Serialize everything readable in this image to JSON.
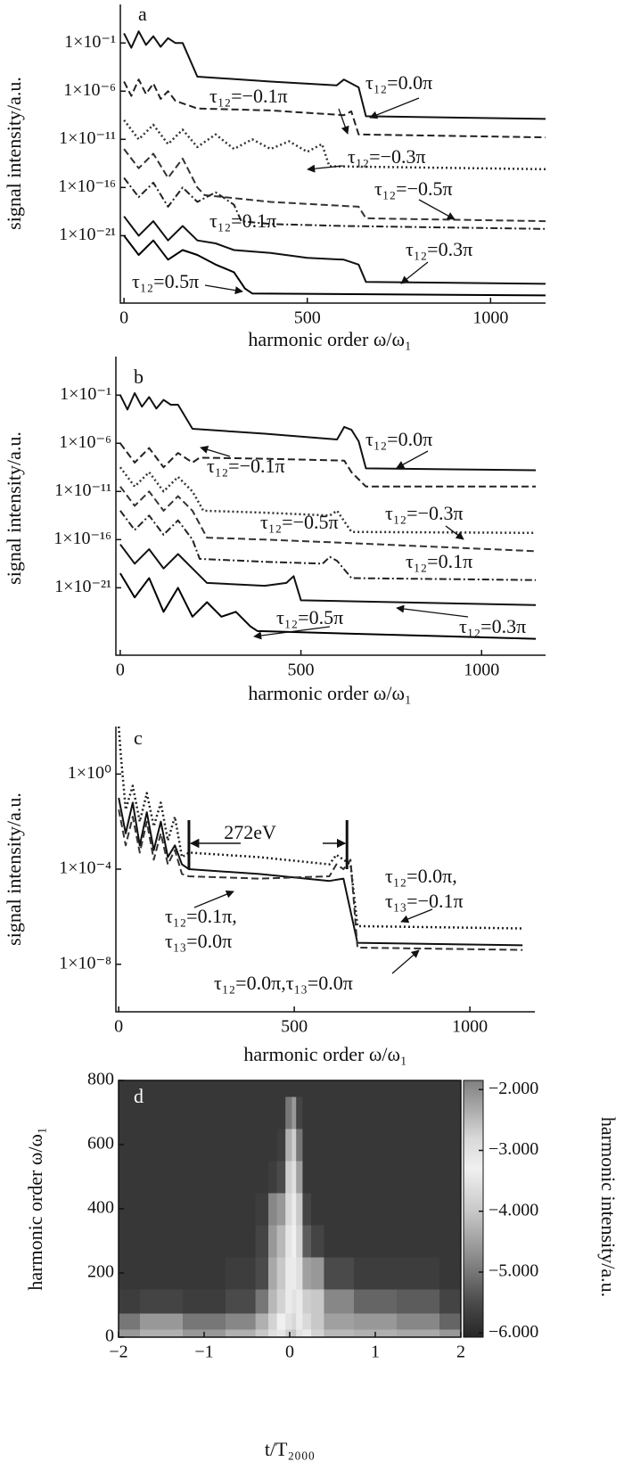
{
  "chart_data": [
    {
      "type": "line",
      "label": "a",
      "xlabel": "harmonic order ω/ω₁",
      "ylabel": "signal intensity/a.u.",
      "log_y": true,
      "xlim": [
        -10,
        1150
      ],
      "ylim": [
        1e-28,
        1000
      ],
      "xticks": [
        0,
        500,
        1000
      ],
      "yticks": [
        {
          "value": 0.1,
          "label": "1×10⁻¹"
        },
        {
          "value": 1e-06,
          "label": "1×10⁻⁶"
        },
        {
          "value": 1e-11,
          "label": "1×10⁻¹¹"
        },
        {
          "value": 1e-16,
          "label": "1×10⁻¹⁶"
        },
        {
          "value": 1e-21,
          "label": "1×10⁻²¹"
        }
      ],
      "series": [
        {
          "name": "τ₁₂=0.0π",
          "color": "#111111",
          "dash": "solid",
          "x": [
            0,
            20,
            40,
            60,
            80,
            100,
            120,
            140,
            160,
            200,
            400,
            580,
            600,
            620,
            640,
            660,
            1150
          ],
          "values": [
            1,
            0.032,
            1.6,
            0.063,
            0.5,
            0.04,
            0.32,
            0.1,
            0.1,
            3.2e-05,
            1e-05,
            4e-06,
            1.6e-05,
            6.3e-06,
            2.5e-06,
            2.5e-09,
            1.3e-09
          ]
        },
        {
          "name": "τ₁₂=−0.1π",
          "color": "#222222",
          "dash": "dashed",
          "x": [
            0,
            20,
            40,
            60,
            80,
            100,
            120,
            140,
            200,
            400,
            600,
            620,
            640,
            1150
          ],
          "values": [
            1e-05,
            3.2e-07,
            1.6e-05,
            5e-07,
            6.3e-06,
            1.6e-07,
            1e-06,
            1e-07,
            1.6e-08,
            1e-08,
            3.2e-09,
            8e-09,
            3.2e-11,
            1.6e-11
          ]
        },
        {
          "name": "τ₁₂=−0.3π",
          "color": "#333333",
          "dash": "dotted",
          "x": [
            0,
            40,
            80,
            120,
            160,
            200,
            250,
            300,
            350,
            400,
            450,
            500,
            540,
            560,
            1150
          ],
          "values": [
            1e-09,
            1e-11,
            3.2e-10,
            3.2e-12,
            1e-10,
            1.6e-12,
            3.2e-11,
            1e-12,
            1e-11,
            1e-12,
            6.3e-12,
            5e-13,
            3.2e-12,
            1.6e-14,
            8e-15
          ]
        },
        {
          "name": "τ₁₂=−0.5π",
          "color": "#333333",
          "dash": "dashed",
          "x": [
            0,
            40,
            80,
            120,
            160,
            200,
            220,
            400,
            640,
            660,
            1150
          ],
          "values": [
            1e-12,
            1e-14,
            3.2e-13,
            1e-15,
            1e-13,
            1e-16,
            1.6e-17,
            3.2e-18,
            1e-18,
            6.3e-20,
            3.2e-20
          ]
        },
        {
          "name": "τ₁₂=0.1π",
          "color": "#222222",
          "dash": "dashdot",
          "x": [
            0,
            40,
            80,
            120,
            160,
            200,
            250,
            300,
            320,
            400,
            600,
            1150
          ],
          "values": [
            1e-15,
            1e-17,
            3.2e-16,
            1e-18,
            1e-16,
            3.2e-18,
            3.2e-17,
            1.6e-18,
            3.2e-20,
            1.6e-20,
            1e-20,
            5e-21
          ]
        },
        {
          "name": "τ₁₂=0.3π",
          "color": "#111111",
          "dash": "solid",
          "x": [
            0,
            40,
            80,
            120,
            160,
            200,
            250,
            300,
            400,
            500,
            600,
            640,
            660,
            1150
          ],
          "values": [
            1e-19,
            1e-21,
            3.2e-20,
            3.2e-22,
            1e-20,
            3.2e-22,
            1.6e-22,
            3.2e-23,
            1.6e-23,
            5e-24,
            3.2e-24,
            1e-24,
            1.6e-26,
            1e-26
          ]
        },
        {
          "name": "τ₁₂=0.5π",
          "color": "#000000",
          "dash": "solid",
          "x": [
            0,
            40,
            80,
            120,
            160,
            200,
            250,
            300,
            330,
            350,
            1150
          ],
          "values": [
            1e-21,
            1e-23,
            3.2e-22,
            3.2e-24,
            3.2e-23,
            1e-23,
            1e-24,
            1.6e-25,
            3.2e-27,
            1e-27,
            6.3e-28
          ]
        }
      ]
    },
    {
      "type": "line",
      "label": "b",
      "xlabel": "harmonic order ω/ω₁",
      "ylabel": "signal intensity/a.u.",
      "log_y": true,
      "xlim": [
        -12,
        1177
      ],
      "ylim": [
        1e-28,
        1000
      ],
      "xticks": [
        0,
        500,
        1000
      ],
      "yticks": [
        {
          "value": 0.1,
          "label": "1×10⁻¹"
        },
        {
          "value": 1e-06,
          "label": "1×10⁻⁶"
        },
        {
          "value": 1e-11,
          "label": "1×10⁻¹¹"
        },
        {
          "value": 1e-16,
          "label": "1×10⁻¹⁶"
        },
        {
          "value": 1e-21,
          "label": "1×10⁻²¹"
        }
      ],
      "series": [
        {
          "name": "τ₁₂=0.0π",
          "color": "#111111",
          "dash": "solid",
          "x": [
            0,
            20,
            40,
            60,
            80,
            100,
            120,
            140,
            160,
            200,
            400,
            600,
            620,
            640,
            660,
            680,
            1150
          ],
          "values": [
            0.1,
            0.0032,
            0.16,
            0.0063,
            0.063,
            0.004,
            0.032,
            0.01,
            0.01,
            3.2e-05,
            1e-05,
            2.5e-06,
            5e-05,
            2.5e-05,
            1.6e-06,
            2.5e-09,
            1.6e-09
          ]
        },
        {
          "name": "τ₁₂=−0.1π",
          "color": "#222222",
          "dash": "dashed",
          "x": [
            0,
            40,
            80,
            120,
            160,
            200,
            220,
            400,
            620,
            640,
            680,
            1150
          ],
          "values": [
            1e-06,
            1e-08,
            3.2e-07,
            3.2e-09,
            1e-07,
            1e-08,
            3.2e-08,
            2.5e-08,
            1.6e-08,
            1e-09,
            3.2e-11,
            3.2e-11
          ]
        },
        {
          "name": "τ₁₂=−0.3π",
          "color": "#333333",
          "dash": "dotted",
          "x": [
            0,
            40,
            80,
            120,
            160,
            200,
            230,
            400,
            580,
            600,
            640,
            1150
          ],
          "values": [
            3.2e-09,
            3.2e-11,
            1e-09,
            1e-11,
            3.2e-10,
            1e-11,
            1e-13,
            6.3e-14,
            3.2e-14,
            1e-13,
            6.3e-16,
            5e-16
          ]
        },
        {
          "name": "τ₁₂=−0.5π",
          "color": "#333333",
          "dash": "dashed",
          "x": [
            0,
            40,
            80,
            120,
            160,
            200,
            240,
            400,
            600,
            1150
          ],
          "values": [
            3.2e-11,
            3.2e-13,
            1e-11,
            1e-13,
            3.2e-12,
            1e-13,
            1.6e-16,
            1e-16,
            5e-17,
            6.3e-18
          ]
        },
        {
          "name": "τ₁₂=0.1π",
          "color": "#222222",
          "dash": "dashdot",
          "x": [
            0,
            40,
            80,
            120,
            160,
            200,
            220,
            400,
            560,
            580,
            600,
            640,
            1150
          ],
          "values": [
            1e-13,
            1e-15,
            3.2e-14,
            3.2e-16,
            1e-14,
            1e-16,
            1e-18,
            5e-19,
            3.2e-19,
            1.6e-18,
            6.3e-19,
            1e-20,
            6.3e-21
          ]
        },
        {
          "name": "τ₁₂=0.3π",
          "color": "#111111",
          "dash": "solid",
          "x": [
            0,
            40,
            80,
            120,
            160,
            200,
            240,
            400,
            460,
            480,
            500,
            1150
          ],
          "values": [
            3.2e-17,
            3.2e-19,
            1e-17,
            1e-19,
            3.2e-18,
            1e-19,
            3.2e-21,
            1.6e-21,
            3.2e-21,
            1.6e-20,
            5e-23,
            1.6e-23
          ]
        },
        {
          "name": "τ₁₂=0.5π",
          "color": "#000000",
          "dash": "solid",
          "x": [
            0,
            40,
            80,
            120,
            160,
            200,
            240,
            280,
            320,
            360,
            380,
            1150
          ],
          "values": [
            3.2e-20,
            1e-22,
            1e-20,
            3.2e-24,
            1e-21,
            1e-24,
            3.2e-23,
            1e-24,
            3.2e-24,
            1e-25,
            3.2e-26,
            5e-27
          ]
        }
      ]
    },
    {
      "type": "line",
      "label": "c",
      "xlabel": "harmonic order ω/ω₁",
      "ylabel": "signal intensity/a.u.",
      "log_y": true,
      "xlim": [
        -8,
        1185
      ],
      "ylim": [
        1e-10,
        100
      ],
      "xticks": [
        0,
        500,
        1000
      ],
      "yticks": [
        {
          "value": 1,
          "label": "1×10⁰"
        },
        {
          "value": 0.0001,
          "label": "1×10⁻⁴"
        },
        {
          "value": 1e-08,
          "label": "1×10⁻⁸"
        }
      ],
      "annotations": [
        "272eV"
      ],
      "series": [
        {
          "name": "τ₁₂=0.0π,\nτ₁₃=−0.1π",
          "color": "#222222",
          "dash": "dotted",
          "x": [
            0,
            5,
            20,
            40,
            60,
            80,
            100,
            120,
            140,
            160,
            180,
            200,
            400,
            600,
            620,
            640,
            660,
            680,
            1150
          ],
          "values": [
            100,
            10,
            0.032,
            0.32,
            0.01,
            0.16,
            0.0063,
            0.063,
            0.0016,
            0.016,
            0.00032,
            0.0005,
            0.00032,
            0.00016,
            0.0004,
            0.00025,
            0.00016,
            4e-07,
            3.2e-07
          ]
        },
        {
          "name": "τ₁₂=0.1π,\nτ₁₃=0.0π",
          "color": "#111111",
          "dash": "solid",
          "x": [
            0,
            20,
            40,
            60,
            80,
            100,
            120,
            140,
            160,
            180,
            200,
            400,
            600,
            640,
            680,
            1150
          ],
          "values": [
            0.1,
            0.0032,
            0.063,
            0.001,
            0.025,
            0.00063,
            0.01,
            0.00032,
            0.001,
            0.00016,
            0.0001,
            6.3e-05,
            3.2e-05,
            4e-05,
            8e-08,
            6.3e-08
          ]
        },
        {
          "name": "τ₁₂=0.0π,τ₁₃=0.0π",
          "color": "#333333",
          "dash": "dashed",
          "x": [
            0,
            20,
            40,
            60,
            80,
            100,
            120,
            140,
            160,
            180,
            200,
            400,
            600,
            620,
            640,
            660,
            680,
            1150
          ],
          "values": [
            0.032,
            0.001,
            0.016,
            0.0005,
            0.01,
            0.00025,
            0.0032,
            0.00016,
            0.00063,
            6.3e-05,
            5e-05,
            4e-05,
            5e-05,
            0.00016,
            0.0001,
            0.00025,
            5e-08,
            4e-08
          ]
        }
      ]
    },
    {
      "type": "heatmap",
      "label": "d",
      "xlabel": "t/T₂₀₀₀",
      "ylabel": "harmonic order ω/ω₁",
      "zlabel": "harmonic intensity/a.u.",
      "xlim": [
        -2,
        2
      ],
      "ylim": [
        0,
        800
      ],
      "xticks": [
        {
          "value": -2,
          "label": "−2"
        },
        {
          "value": -1,
          "label": "−1"
        },
        0,
        1,
        2
      ],
      "yticks": [
        0,
        200,
        400,
        600,
        800
      ],
      "zlim": [
        -6.07,
        -1.85
      ],
      "zticks": [
        {
          "value": -2,
          "label": "−2.000"
        },
        {
          "value": -3,
          "label": "−3.000"
        },
        {
          "value": -4,
          "label": "−4.000"
        },
        {
          "value": -5,
          "label": "−5.000"
        },
        {
          "value": -6,
          "label": "−6.000"
        }
      ],
      "colorscale": [
        [
          -6.07,
          "#262626"
        ],
        [
          -5.5,
          "#4a4a4a"
        ],
        [
          -5,
          "#777777"
        ],
        [
          -4.5,
          "#a0a0a0"
        ],
        [
          -4,
          "#c8c8c8"
        ],
        [
          -3.3,
          "#f0f0f0"
        ],
        [
          -2.8,
          "#d8d8d8"
        ],
        [
          -2.3,
          "#a8a8a8"
        ],
        [
          -1.85,
          "#808080"
        ]
      ],
      "x": [
        -2,
        -1.5,
        -1,
        -0.5,
        -0.3,
        -0.2,
        -0.1,
        0,
        0.05,
        0.1,
        0.2,
        0.3,
        0.5,
        1,
        1.5,
        2
      ],
      "y": [
        0,
        50,
        100,
        200,
        300,
        400,
        500,
        600,
        700,
        800
      ],
      "z": [
        [
          -4.6,
          -4.3,
          -4.6,
          -4.3,
          -4,
          -3.6,
          -3.1,
          -2.7,
          -2.6,
          -3,
          -3.4,
          -3.8,
          -4.2,
          -4.3,
          -4.4,
          -4.6
        ],
        [
          -5,
          -4.6,
          -5,
          -4.8,
          -4.3,
          -3.8,
          -3.3,
          -3,
          -2.8,
          -3.2,
          -3.7,
          -4,
          -4.5,
          -4.6,
          -4.8,
          -5.2
        ],
        [
          -5.7,
          -5.6,
          -5.7,
          -5.5,
          -5,
          -4.2,
          -3.8,
          -3.2,
          -3,
          -3.4,
          -3.9,
          -4,
          -4.8,
          -5.2,
          -5.3,
          -5.6
        ],
        [
          -5.8,
          -5.8,
          -5.8,
          -5.7,
          -5.5,
          -4.4,
          -4,
          -3.4,
          -3.2,
          -3.6,
          -4.5,
          -4.6,
          -5.5,
          -5.7,
          -5.7,
          -5.8
        ],
        [
          -5.8,
          -5.8,
          -5.8,
          -5.8,
          -5.6,
          -4.6,
          -4.2,
          -3.5,
          -3.3,
          -3.8,
          -5.3,
          -5.6,
          -5.8,
          -5.8,
          -5.8,
          -5.8
        ],
        [
          -5.8,
          -5.8,
          -5.8,
          -5.8,
          -5.7,
          -4.8,
          -4.6,
          -3.7,
          -3.4,
          -4,
          -5.6,
          -5.8,
          -5.8,
          -5.8,
          -5.8,
          -5.8
        ],
        [
          -5.8,
          -5.8,
          -5.8,
          -5.8,
          -5.8,
          -5.7,
          -5.5,
          -3.9,
          -3.6,
          -4.5,
          -5.8,
          -5.8,
          -5.8,
          -5.8,
          -5.8,
          -5.8
        ],
        [
          -5.8,
          -5.8,
          -5.8,
          -5.8,
          -5.8,
          -5.8,
          -5.7,
          -4.3,
          -3.9,
          -5,
          -5.8,
          -5.8,
          -5.8,
          -5.8,
          -5.8,
          -5.8
        ],
        [
          -5.8,
          -5.8,
          -5.8,
          -5.8,
          -5.8,
          -5.8,
          -5.8,
          -5,
          -4.6,
          -5.6,
          -5.8,
          -5.8,
          -5.8,
          -5.8,
          -5.8,
          -5.8
        ],
        [
          -5.8,
          -5.8,
          -5.8,
          -5.8,
          -5.8,
          -5.8,
          -5.8,
          -5.8,
          -5.8,
          -5.8,
          -5.8,
          -5.8,
          -5.8,
          -5.8,
          -5.8,
          -5.8
        ]
      ]
    }
  ]
}
